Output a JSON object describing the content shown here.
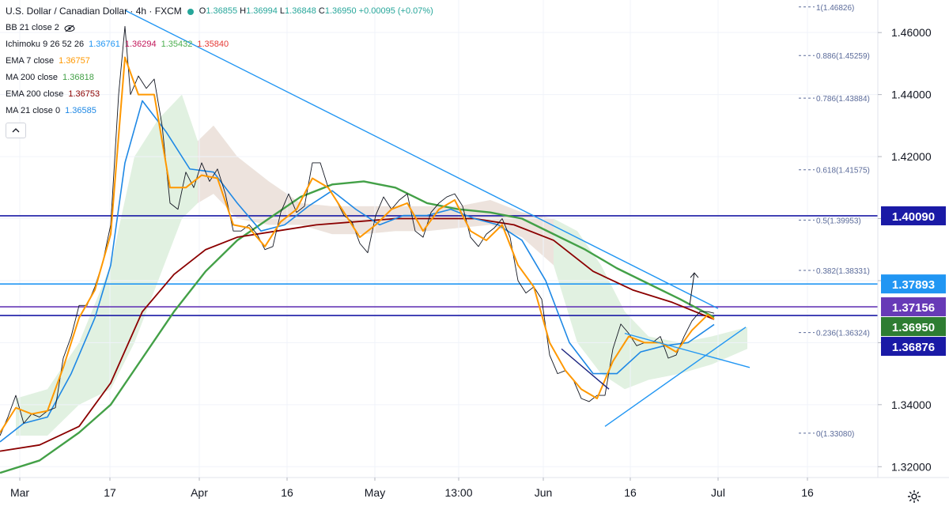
{
  "header": {
    "title": "U.S. Dollar / Canadian Dollar · 4h · FXCM",
    "ohlc": [
      {
        "k": "O",
        "v": "1.36855"
      },
      {
        "k": "H",
        "v": "1.36994"
      },
      {
        "k": "L",
        "v": "1.36848"
      },
      {
        "k": "C",
        "v": "1.36950"
      }
    ],
    "change": "+0.00095 (+0.07%)"
  },
  "indicators": [
    {
      "label": "BB 21 close 2",
      "values": []
    },
    {
      "label": "Ichimoku 9 26 52 26",
      "values": [
        {
          "v": "1.36761",
          "color": "#2196f3"
        },
        {
          "v": "1.36294",
          "color": "#c2185b"
        },
        {
          "v": "1.35432",
          "color": "#4caf50"
        },
        {
          "v": "1.35840",
          "color": "#e53935"
        }
      ]
    },
    {
      "label": "EMA 7 close",
      "values": [
        {
          "v": "1.36757",
          "color": "#ff9800"
        }
      ]
    },
    {
      "label": "MA 200 close",
      "values": [
        {
          "v": "1.36818",
          "color": "#43a047"
        }
      ]
    },
    {
      "label": "EMA 200 close",
      "values": [
        {
          "v": "1.36753",
          "color": "#8b0000"
        }
      ]
    },
    {
      "label": "MA 21 close 0",
      "values": [
        {
          "v": "1.36585",
          "color": "#1e88e5"
        }
      ]
    }
  ],
  "colors": {
    "price_series": "#131722",
    "ema7": "#ff9800",
    "ma200": "#43a047",
    "ema200": "#8b0000",
    "ma21": "#1e88e5",
    "trend": "#2196f3",
    "cloud_bull": "#c8e6c9",
    "cloud_bear": "#f8d7da",
    "hline_navy": "#1a1aa6",
    "hline_blue": "#2196f3",
    "hline_purple": "#673ab7",
    "fib": "#5b6b9a"
  },
  "chart_data": {
    "type": "line",
    "title": "U.S. Dollar / Canadian Dollar · 4h · FXCM",
    "ylim": [
      1.3165,
      1.4705
    ],
    "xlim": [
      0,
      1110
    ],
    "y_ticks": [
      "1.46000",
      "1.44000",
      "1.42000",
      "1.40000",
      "1.38000",
      "1.36000",
      "1.34000",
      "1.32000"
    ],
    "y_tick_values": [
      1.46,
      1.44,
      1.42,
      1.4,
      1.38,
      1.36,
      1.34,
      1.32
    ],
    "x_ticks": [
      "Mar",
      "17",
      "Apr",
      "16",
      "May",
      "13:00",
      "Jun",
      "16",
      "Jul",
      "16"
    ],
    "x_tick_values": [
      25,
      139,
      252,
      363,
      474,
      580,
      687,
      797,
      908,
      1021
    ],
    "fib_levels": [
      {
        "label": "1(1.46826)",
        "value": 1.46826
      },
      {
        "label": "0.886(1.45259)",
        "value": 1.45259
      },
      {
        "label": "0.786(1.43884)",
        "value": 1.43884
      },
      {
        "label": "0.618(1.41575)",
        "value": 1.41575
      },
      {
        "label": "0.5(1.39953)",
        "value": 1.39953
      },
      {
        "label": "0.382(1.38331)",
        "value": 1.38331
      },
      {
        "label": "0.236(1.36324)",
        "value": 1.36324
      },
      {
        "label": "0(1.33080)",
        "value": 1.3308
      }
    ],
    "horizontal_levels": [
      {
        "label": "1.40090",
        "value": 1.4009,
        "color": "#1a1aa6"
      },
      {
        "label": "1.37893",
        "value": 1.37893,
        "color": "#2196f3"
      },
      {
        "label": "1.37156",
        "value": 1.37156,
        "color": "#673ab7"
      },
      {
        "label": "1.36876",
        "value": 1.36876,
        "color": "#1a1aa6"
      }
    ],
    "current_price": {
      "label": "1.36950",
      "value": 1.3695,
      "color": "#2e7d32"
    },
    "series": [
      {
        "key": "price",
        "values": [
          [
            0,
            1.33
          ],
          [
            10,
            1.336
          ],
          [
            20,
            1.343
          ],
          [
            30,
            1.334
          ],
          [
            40,
            1.337
          ],
          [
            50,
            1.336
          ],
          [
            60,
            1.338
          ],
          [
            70,
            1.339
          ],
          [
            80,
            1.355
          ],
          [
            90,
            1.362
          ],
          [
            100,
            1.372
          ],
          [
            110,
            1.372
          ],
          [
            120,
            1.378
          ],
          [
            130,
            1.386
          ],
          [
            140,
            1.398
          ],
          [
            150,
            1.44
          ],
          [
            158,
            1.462
          ],
          [
            165,
            1.44
          ],
          [
            175,
            1.446
          ],
          [
            185,
            1.442
          ],
          [
            195,
            1.445
          ],
          [
            205,
            1.43
          ],
          [
            215,
            1.405
          ],
          [
            225,
            1.403
          ],
          [
            235,
            1.415
          ],
          [
            245,
            1.41
          ],
          [
            255,
            1.418
          ],
          [
            265,
            1.412
          ],
          [
            275,
            1.416
          ],
          [
            285,
            1.408
          ],
          [
            295,
            1.396
          ],
          [
            305,
            1.396
          ],
          [
            315,
            1.398
          ],
          [
            325,
            1.395
          ],
          [
            335,
            1.39
          ],
          [
            345,
            1.391
          ],
          [
            355,
            1.402
          ],
          [
            365,
            1.408
          ],
          [
            375,
            1.402
          ],
          [
            385,
            1.404
          ],
          [
            395,
            1.418
          ],
          [
            405,
            1.418
          ],
          [
            415,
            1.41
          ],
          [
            425,
            1.406
          ],
          [
            435,
            1.401
          ],
          [
            445,
            1.399
          ],
          [
            455,
            1.392
          ],
          [
            465,
            1.389
          ],
          [
            475,
            1.401
          ],
          [
            485,
            1.407
          ],
          [
            495,
            1.403
          ],
          [
            505,
            1.406
          ],
          [
            515,
            1.408
          ],
          [
            525,
            1.396
          ],
          [
            535,
            1.394
          ],
          [
            545,
            1.402
          ],
          [
            555,
            1.405
          ],
          [
            565,
            1.407
          ],
          [
            575,
            1.408
          ],
          [
            585,
            1.404
          ],
          [
            595,
            1.394
          ],
          [
            605,
            1.391
          ],
          [
            615,
            1.395
          ],
          [
            625,
            1.397
          ],
          [
            635,
            1.4
          ],
          [
            645,
            1.394
          ],
          [
            655,
            1.38
          ],
          [
            665,
            1.376
          ],
          [
            675,
            1.378
          ],
          [
            685,
            1.374
          ],
          [
            695,
            1.356
          ],
          [
            705,
            1.35
          ],
          [
            715,
            1.351
          ],
          [
            725,
            1.348
          ],
          [
            735,
            1.342
          ],
          [
            745,
            1.341
          ],
          [
            755,
            1.343
          ],
          [
            765,
            1.343
          ],
          [
            775,
            1.358
          ],
          [
            785,
            1.366
          ],
          [
            795,
            1.363
          ],
          [
            805,
            1.359
          ],
          [
            815,
            1.36
          ],
          [
            825,
            1.36
          ],
          [
            835,
            1.362
          ],
          [
            845,
            1.355
          ],
          [
            855,
            1.356
          ],
          [
            865,
            1.362
          ],
          [
            875,
            1.367
          ],
          [
            885,
            1.37
          ],
          [
            895,
            1.37
          ],
          [
            903,
            1.3695
          ]
        ]
      },
      {
        "key": "ema7",
        "values": [
          [
            0,
            1.331
          ],
          [
            20,
            1.339
          ],
          [
            40,
            1.337
          ],
          [
            60,
            1.338
          ],
          [
            80,
            1.352
          ],
          [
            100,
            1.368
          ],
          [
            120,
            1.377
          ],
          [
            140,
            1.395
          ],
          [
            158,
            1.452
          ],
          [
            175,
            1.44
          ],
          [
            195,
            1.44
          ],
          [
            215,
            1.41
          ],
          [
            235,
            1.41
          ],
          [
            255,
            1.414
          ],
          [
            275,
            1.413
          ],
          [
            295,
            1.398
          ],
          [
            315,
            1.397
          ],
          [
            335,
            1.391
          ],
          [
            355,
            1.399
          ],
          [
            375,
            1.403
          ],
          [
            395,
            1.413
          ],
          [
            415,
            1.41
          ],
          [
            435,
            1.402
          ],
          [
            455,
            1.394
          ],
          [
            475,
            1.398
          ],
          [
            495,
            1.403
          ],
          [
            515,
            1.405
          ],
          [
            535,
            1.396
          ],
          [
            555,
            1.403
          ],
          [
            575,
            1.406
          ],
          [
            595,
            1.396
          ],
          [
            615,
            1.393
          ],
          [
            635,
            1.398
          ],
          [
            655,
            1.385
          ],
          [
            675,
            1.378
          ],
          [
            695,
            1.36
          ],
          [
            715,
            1.351
          ],
          [
            735,
            1.345
          ],
          [
            755,
            1.342
          ],
          [
            775,
            1.354
          ],
          [
            795,
            1.362
          ],
          [
            815,
            1.36
          ],
          [
            835,
            1.36
          ],
          [
            855,
            1.357
          ],
          [
            875,
            1.364
          ],
          [
            895,
            1.369
          ],
          [
            903,
            1.3676
          ]
        ]
      },
      {
        "key": "ma21",
        "values": [
          [
            0,
            1.328
          ],
          [
            30,
            1.334
          ],
          [
            60,
            1.336
          ],
          [
            90,
            1.35
          ],
          [
            120,
            1.368
          ],
          [
            140,
            1.385
          ],
          [
            158,
            1.418
          ],
          [
            180,
            1.438
          ],
          [
            210,
            1.428
          ],
          [
            240,
            1.416
          ],
          [
            270,
            1.415
          ],
          [
            300,
            1.405
          ],
          [
            330,
            1.396
          ],
          [
            360,
            1.398
          ],
          [
            390,
            1.404
          ],
          [
            420,
            1.409
          ],
          [
            450,
            1.403
          ],
          [
            480,
            1.398
          ],
          [
            510,
            1.401
          ],
          [
            540,
            1.401
          ],
          [
            570,
            1.403
          ],
          [
            600,
            1.4
          ],
          [
            630,
            1.398
          ],
          [
            660,
            1.393
          ],
          [
            690,
            1.38
          ],
          [
            720,
            1.36
          ],
          [
            750,
            1.35
          ],
          [
            780,
            1.35
          ],
          [
            810,
            1.357
          ],
          [
            840,
            1.359
          ],
          [
            870,
            1.36
          ],
          [
            903,
            1.36585
          ]
        ]
      },
      {
        "key": "ema200",
        "values": [
          [
            0,
            1.325
          ],
          [
            50,
            1.327
          ],
          [
            100,
            1.333
          ],
          [
            140,
            1.347
          ],
          [
            180,
            1.37
          ],
          [
            220,
            1.382
          ],
          [
            260,
            1.39
          ],
          [
            300,
            1.394
          ],
          [
            350,
            1.396
          ],
          [
            400,
            1.398
          ],
          [
            450,
            1.399
          ],
          [
            500,
            1.4
          ],
          [
            550,
            1.4
          ],
          [
            600,
            1.4
          ],
          [
            650,
            1.398
          ],
          [
            700,
            1.393
          ],
          [
            750,
            1.383
          ],
          [
            800,
            1.377
          ],
          [
            850,
            1.373
          ],
          [
            903,
            1.36753
          ]
        ]
      },
      {
        "key": "ma200",
        "values": [
          [
            0,
            1.318
          ],
          [
            50,
            1.322
          ],
          [
            100,
            1.331
          ],
          [
            140,
            1.34
          ],
          [
            180,
            1.355
          ],
          [
            220,
            1.37
          ],
          [
            260,
            1.383
          ],
          [
            300,
            1.393
          ],
          [
            340,
            1.4
          ],
          [
            380,
            1.407
          ],
          [
            420,
            1.411
          ],
          [
            460,
            1.412
          ],
          [
            500,
            1.41
          ],
          [
            540,
            1.405
          ],
          [
            580,
            1.403
          ],
          [
            620,
            1.402
          ],
          [
            660,
            1.4
          ],
          [
            700,
            1.395
          ],
          [
            740,
            1.39
          ],
          [
            780,
            1.384
          ],
          [
            820,
            1.379
          ],
          [
            860,
            1.374
          ],
          [
            903,
            1.36818
          ]
        ]
      }
    ],
    "cloud": [
      [
        20,
        1.33,
        1.342
      ],
      [
        60,
        1.33,
        1.345
      ],
      [
        100,
        1.34,
        1.36
      ],
      [
        140,
        1.345,
        1.385
      ],
      [
        170,
        1.36,
        1.42
      ],
      [
        200,
        1.38,
        1.432
      ],
      [
        230,
        1.4,
        1.44
      ],
      [
        250,
        1.405,
        1.425
      ],
      [
        270,
        1.408,
        1.43
      ],
      [
        300,
        1.4,
        1.42
      ],
      [
        340,
        1.398,
        1.412
      ],
      [
        380,
        1.398,
        1.405
      ],
      [
        420,
        1.395,
        1.404
      ],
      [
        460,
        1.395,
        1.404
      ],
      [
        500,
        1.396,
        1.404
      ],
      [
        540,
        1.396,
        1.404
      ],
      [
        580,
        1.397,
        1.404
      ],
      [
        620,
        1.398,
        1.406
      ],
      [
        660,
        1.394,
        1.402
      ],
      [
        700,
        1.385,
        1.4
      ],
      [
        730,
        1.36,
        1.396
      ],
      [
        760,
        1.35,
        1.385
      ],
      [
        790,
        1.345,
        1.37
      ],
      [
        820,
        1.348,
        1.362
      ],
      [
        860,
        1.35,
        1.36
      ],
      [
        900,
        1.353,
        1.362
      ],
      [
        945,
        1.358,
        1.365
      ]
    ],
    "trendlines": [
      {
        "from": [
          158,
          1.4672
        ],
        "to": [
          908,
          1.371
        ]
      },
      {
        "from": [
          765,
          1.333
        ],
        "to": [
          943,
          1.365
        ]
      },
      {
        "from": [
          790,
          1.363
        ],
        "to": [
          948,
          1.352
        ]
      },
      {
        "from": [
          710,
          1.358
        ],
        "to": [
          770,
          1.345
        ]
      }
    ],
    "arrow": {
      "from": [
        872,
        1.372
      ],
      "to": [
        878,
        1.3825
      ]
    }
  }
}
